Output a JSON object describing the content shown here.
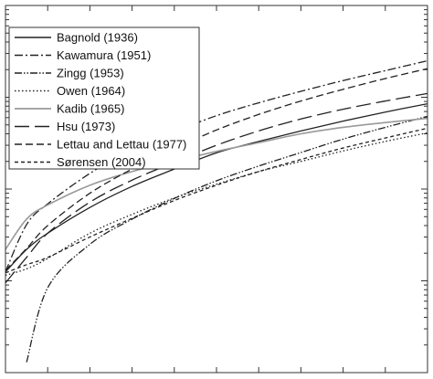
{
  "chart_data": {
    "type": "line",
    "title": "",
    "xlabel": "",
    "ylabel": "",
    "xscale": "linear",
    "yscale": "log",
    "xlim": [
      0,
      1
    ],
    "ylim": [
      0.001,
      10
    ],
    "grid": false,
    "legend_position": "top-left",
    "series": [
      {
        "name": "Bagnold (1936)",
        "color": "#222222",
        "dash": "solid",
        "x": [
          0.0,
          0.05,
          0.1,
          0.2,
          0.3,
          0.4,
          0.5,
          0.6,
          0.7,
          0.8,
          0.9,
          1.0
        ],
        "y": [
          0.0125,
          0.022,
          0.033,
          0.063,
          0.107,
          0.165,
          0.248,
          0.33,
          0.43,
          0.55,
          0.69,
          0.85
        ]
      },
      {
        "name": "Kawamura (1951)",
        "color": "#222222",
        "dash": "dash-dot",
        "x": [
          0.0,
          0.05,
          0.1,
          0.2,
          0.3,
          0.4,
          0.5,
          0.6,
          0.7,
          0.8,
          0.9,
          1.0
        ],
        "y": [
          0.0126,
          0.041,
          0.069,
          0.148,
          0.27,
          0.42,
          0.63,
          0.87,
          1.16,
          1.52,
          1.95,
          2.5
        ]
      },
      {
        "name": "Zingg (1953)",
        "color": "#222222",
        "dash": "dash-dot-dot",
        "x": [
          0.05,
          0.1,
          0.2,
          0.3,
          0.4,
          0.5,
          0.6,
          0.7,
          0.8,
          0.9,
          1.0
        ],
        "y": [
          0.0013,
          0.0084,
          0.025,
          0.047,
          0.079,
          0.123,
          0.178,
          0.25,
          0.35,
          0.47,
          0.62
        ]
      },
      {
        "name": "Owen (1964)",
        "color": "#222222",
        "dash": "dotted",
        "x": [
          0.0,
          0.05,
          0.1,
          0.2,
          0.3,
          0.4,
          0.5,
          0.6,
          0.7,
          0.8,
          0.9,
          1.0
        ],
        "y": [
          0.0115,
          0.0135,
          0.0175,
          0.033,
          0.053,
          0.08,
          0.113,
          0.155,
          0.2,
          0.26,
          0.33,
          0.41
        ]
      },
      {
        "name": "Kadib (1965)",
        "color": "#999999",
        "dash": "solid",
        "x": [
          0.0,
          0.05,
          0.1,
          0.2,
          0.3,
          0.4,
          0.5,
          0.6,
          0.7,
          0.8,
          0.9,
          1.0
        ],
        "y": [
          0.022,
          0.047,
          0.067,
          0.11,
          0.155,
          0.2,
          0.257,
          0.32,
          0.4,
          0.47,
          0.53,
          0.59
        ]
      },
      {
        "name": "Hsu (1973)",
        "color": "#222222",
        "dash": "long-dash",
        "x": [
          0.0,
          0.05,
          0.1,
          0.2,
          0.3,
          0.4,
          0.5,
          0.6,
          0.7,
          0.8,
          0.9,
          1.0
        ],
        "y": [
          0.0095,
          0.018,
          0.033,
          0.072,
          0.125,
          0.195,
          0.3,
          0.43,
          0.58,
          0.74,
          0.91,
          1.1
        ]
      },
      {
        "name": "Lettau and Lettau (1977)",
        "color": "#222222",
        "dash": "dashed",
        "x": [
          0.0,
          0.05,
          0.1,
          0.2,
          0.3,
          0.4,
          0.5,
          0.6,
          0.7,
          0.8,
          0.9,
          1.0
        ],
        "y": [
          0.013,
          0.0225,
          0.04,
          0.09,
          0.165,
          0.275,
          0.44,
          0.65,
          0.91,
          1.22,
          1.6,
          2.05
        ]
      },
      {
        "name": "Sørensen (2004)",
        "color": "#222222",
        "dash": "short-dash",
        "x": [
          0.0,
          0.05,
          0.1,
          0.2,
          0.3,
          0.4,
          0.5,
          0.6,
          0.7,
          0.8,
          0.9,
          1.0
        ],
        "y": [
          0.0122,
          0.015,
          0.018,
          0.03,
          0.048,
          0.075,
          0.11,
          0.155,
          0.21,
          0.28,
          0.36,
          0.46
        ]
      }
    ]
  }
}
